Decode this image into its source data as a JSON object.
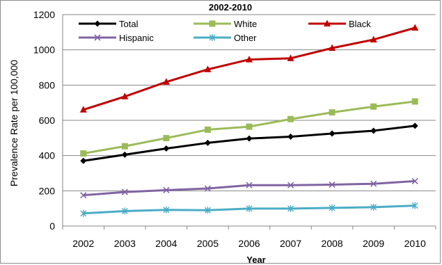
{
  "chart_data": {
    "type": "line",
    "title": "2002-2010",
    "xlabel": "Year",
    "ylabel": "Prevalence Rate per 100,000",
    "categories": [
      "2002",
      "2003",
      "2004",
      "2005",
      "2006",
      "2007",
      "2008",
      "2009",
      "2010"
    ],
    "ylim": [
      0,
      1200
    ],
    "yticks": [
      "0",
      "200",
      "400",
      "600",
      "800",
      "1000",
      "1200"
    ],
    "grid": true,
    "legend_position": "top",
    "series": [
      {
        "name": "Total",
        "color": "#000000",
        "marker": "diamond",
        "values": [
          370,
          405,
          440,
          472,
          497,
          507,
          525,
          541,
          569
        ]
      },
      {
        "name": "White",
        "color": "#9bbb59",
        "marker": "square",
        "values": [
          412,
          453,
          499,
          547,
          564,
          607,
          645,
          678,
          707
        ]
      },
      {
        "name": "Black",
        "color": "#c00000",
        "marker": "triangle",
        "values": [
          660,
          735,
          818,
          889,
          945,
          952,
          1010,
          1058,
          1125
        ]
      },
      {
        "name": "Hispanic",
        "color": "#8064a2",
        "marker": "x",
        "values": [
          175,
          193,
          204,
          213,
          232,
          232,
          235,
          240,
          255
        ]
      },
      {
        "name": "Other",
        "color": "#4bacc6",
        "marker": "star",
        "values": [
          72,
          85,
          92,
          90,
          99,
          99,
          103,
          107,
          116
        ]
      }
    ]
  }
}
